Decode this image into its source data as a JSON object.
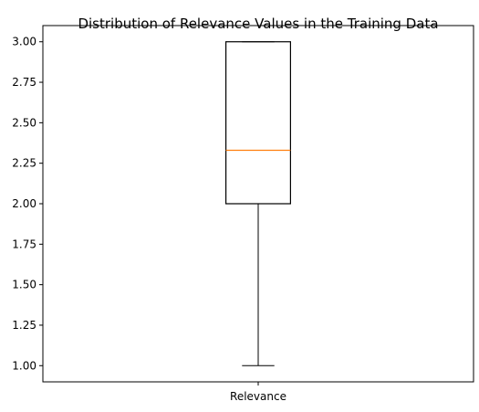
{
  "chart_data": {
    "type": "boxplot",
    "title": "Distribution of Relevance Values in the Training Data",
    "xlabel": "",
    "ylabel": "",
    "categories": [
      "Relevance"
    ],
    "series": [
      {
        "whisker_low": 1.0,
        "q1": 2.0,
        "median": 2.33,
        "q3": 3.0,
        "whisker_high": 3.0
      }
    ],
    "ylim": [
      0.9,
      3.1
    ],
    "yticks": [
      1.0,
      1.25,
      1.5,
      1.75,
      2.0,
      2.25,
      2.5,
      2.75,
      3.0
    ],
    "ytick_labels": [
      "1.00",
      "1.25",
      "1.50",
      "1.75",
      "2.00",
      "2.25",
      "2.50",
      "2.75",
      "3.00"
    ],
    "grid": false,
    "legend": "none",
    "colors": {
      "box": "#000000",
      "median": "#ff7f0e",
      "axes": "#000000"
    }
  }
}
